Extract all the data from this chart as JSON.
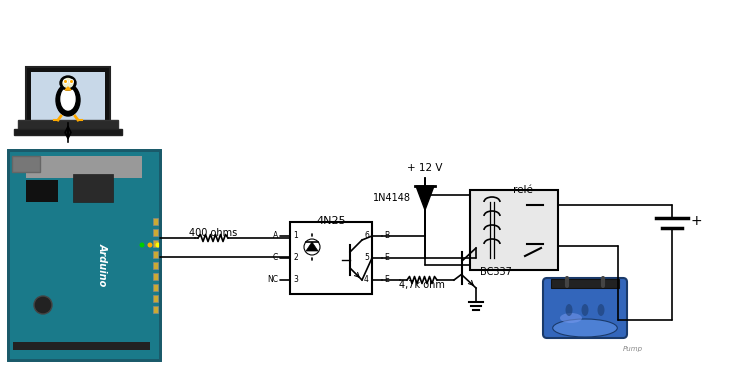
{
  "bg_color": "#ffffff",
  "labels": {
    "resistor1": "400 ohms",
    "ic_4n25": "4N25",
    "diode": "1N4148",
    "transistor": "BC337",
    "resistor2": "4,7k ohm",
    "relay": "relé",
    "voltage": "+ 12 V"
  },
  "colors": {
    "wire": "#000000",
    "arduino_bg": "#1a7a8a",
    "relay_box": "#e8e8e8",
    "pump_blue": "#3366bb",
    "pump_dark": "#1a3a6a",
    "pump_base": "#222222"
  },
  "font_size": 7
}
